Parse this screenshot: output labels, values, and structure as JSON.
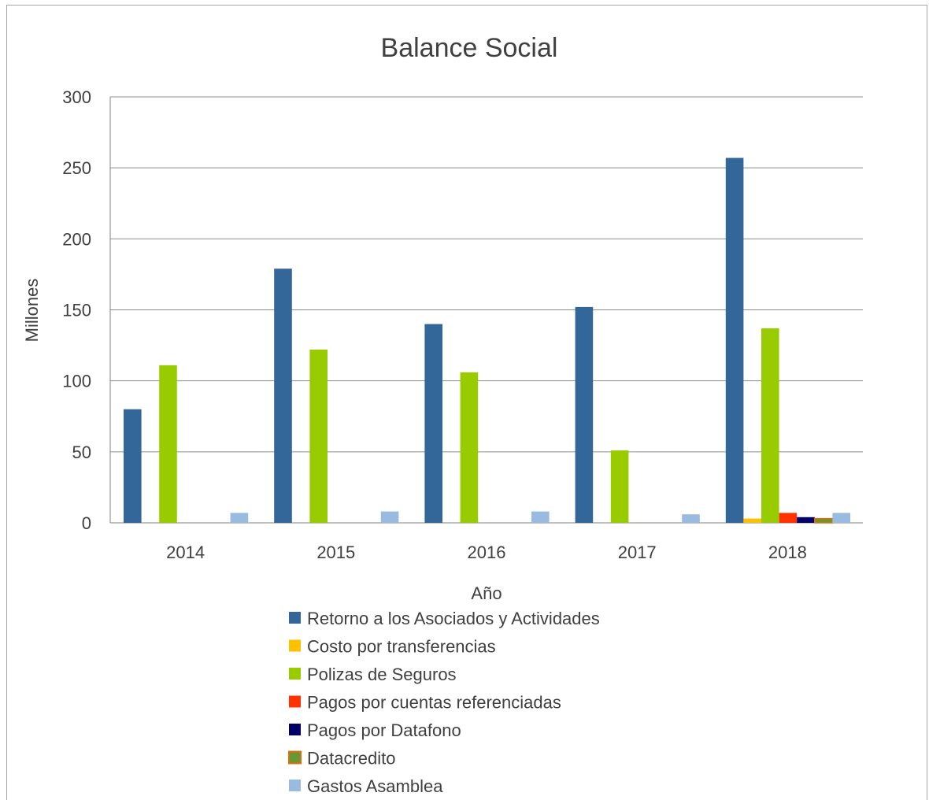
{
  "chart_data": {
    "type": "bar",
    "title": "Balance Social",
    "xlabel": "Año",
    "ylabel": "Millones",
    "ylim": [
      0,
      300
    ],
    "yticks": [
      0,
      50,
      100,
      150,
      200,
      250,
      300
    ],
    "grid": true,
    "legend_position": "bottom",
    "categories": [
      "2014",
      "2015",
      "2016",
      "2017",
      "2018"
    ],
    "series": [
      {
        "name": "Retorno a los Asociados y Actividades",
        "color": "#336699",
        "values": [
          80,
          179,
          140,
          152,
          257
        ]
      },
      {
        "name": "Costo por transferencias",
        "color": "#ffc000",
        "values": [
          0,
          0,
          0,
          0,
          3
        ]
      },
      {
        "name": "Polizas de Seguros",
        "color": "#99cc00",
        "values": [
          111,
          122,
          106,
          51,
          137
        ]
      },
      {
        "name": "Pagos por cuentas referenciadas",
        "color": "#ff3300",
        "values": [
          0,
          0,
          0,
          0,
          7
        ]
      },
      {
        "name": "Pagos por Datafono",
        "color": "#000066",
        "values": [
          0,
          0,
          0,
          0,
          4
        ]
      },
      {
        "name": "Datacredito",
        "color": "#669933",
        "stroke": "#e46c0a",
        "values": [
          0,
          0,
          0,
          0,
          3
        ]
      },
      {
        "name": "Gastos Asamblea",
        "color": "#99bbe0",
        "values": [
          7,
          8,
          8,
          6,
          7
        ]
      }
    ]
  }
}
